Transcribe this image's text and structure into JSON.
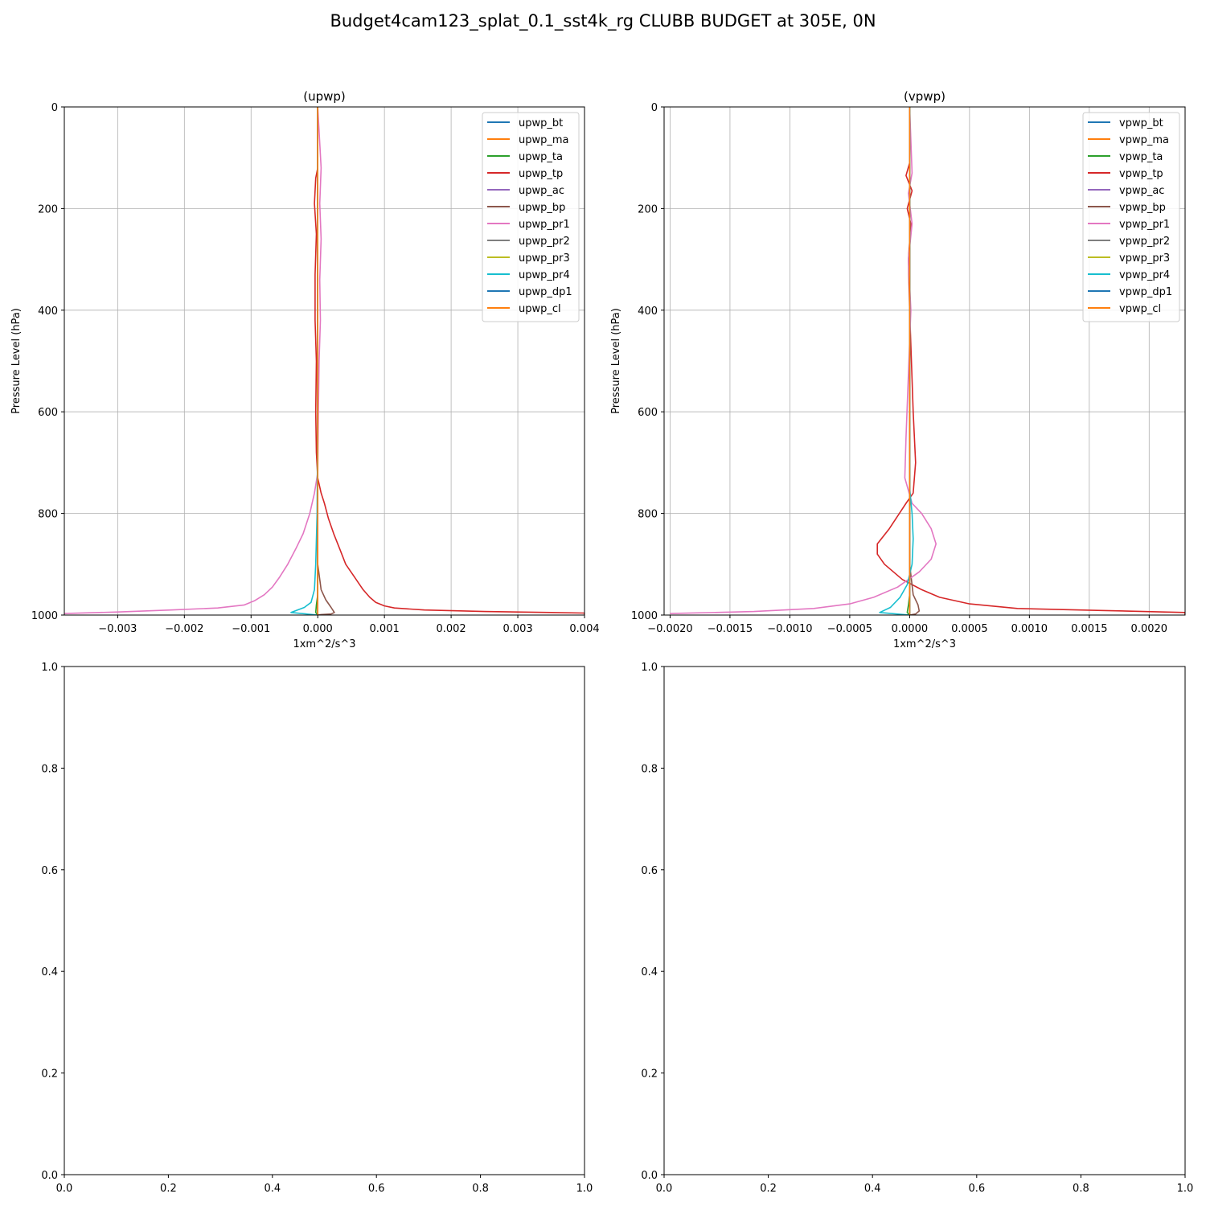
{
  "figure": {
    "title": "Budget4cam123_splat_0.1_sst4k_rg CLUBB BUDGET at 305E, 0N"
  },
  "chart_data": [
    {
      "type": "line",
      "title": "(upwp)",
      "xlabel": "1xm^2/s^3",
      "ylabel": "Pressure Level (hPa)",
      "xlim": [
        -0.0038,
        0.004
      ],
      "ylim": [
        1000,
        0
      ],
      "y_inverted": true,
      "grid": true,
      "legend": "top-right",
      "xticks": [
        -0.003,
        -0.002,
        -0.001,
        0.0,
        0.001,
        0.002,
        0.003,
        0.004
      ],
      "xtick_labels": [
        "−0.003",
        "−0.002",
        "−0.001",
        "0.000",
        "0.001",
        "0.002",
        "0.003",
        "0.004"
      ],
      "yticks": [
        0,
        200,
        400,
        600,
        800,
        1000
      ],
      "ytick_labels": [
        "0",
        "200",
        "400",
        "600",
        "800",
        "1000"
      ],
      "series": [
        {
          "name": "upwp_bt",
          "color": "#1f77b4",
          "x": [
            0,
            0,
            0,
            0
          ],
          "y": [
            0,
            500,
            900,
            1000
          ]
        },
        {
          "name": "upwp_ma",
          "color": "#ff7f0e",
          "x": [
            0,
            0,
            0,
            0
          ],
          "y": [
            0,
            500,
            900,
            1000
          ]
        },
        {
          "name": "upwp_ta",
          "color": "#2ca02c",
          "x": [
            0,
            0,
            0,
            0,
            -2e-05,
            -3e-05,
            0
          ],
          "y": [
            0,
            500,
            900,
            960,
            980,
            995,
            1000
          ]
        },
        {
          "name": "upwp_tp",
          "color": "#d62728",
          "x": [
            0,
            0,
            -3e-05,
            -5e-05,
            -2e-05,
            -4e-05,
            -4e-05,
            -2e-05,
            -3e-05,
            -2e-05,
            0,
            5e-05,
            0.0001,
            0.00016,
            0.00024,
            0.00033,
            0.00042,
            0.00055,
            0.00068,
            0.00078,
            0.00087,
            0.001,
            0.00115,
            0.0016,
            0.0025,
            0.0035,
            0.004,
            0.004
          ],
          "y": [
            0,
            120,
            140,
            190,
            250,
            330,
            420,
            500,
            600,
            680,
            730,
            760,
            780,
            810,
            840,
            870,
            900,
            925,
            950,
            965,
            975,
            982,
            986,
            990,
            993,
            995,
            996,
            1000
          ]
        },
        {
          "name": "upwp_ac",
          "color": "#9467bd",
          "x": [
            0,
            0,
            0,
            0
          ],
          "y": [
            0,
            500,
            900,
            1000
          ]
        },
        {
          "name": "upwp_bp",
          "color": "#8c564b",
          "x": [
            0,
            0,
            5e-05,
            0.00012,
            0.0002,
            0.00025,
            0.0002,
            5e-05,
            0
          ],
          "y": [
            0,
            900,
            950,
            970,
            985,
            995,
            998,
            999,
            1000
          ]
        },
        {
          "name": "upwp_pr1",
          "color": "#e377c2",
          "x": [
            0,
            5e-05,
            3e-05,
            5e-05,
            3e-05,
            4e-05,
            2e-05,
            1e-05,
            0,
            -5e-05,
            -0.00012,
            -0.00022,
            -0.00033,
            -0.00045,
            -0.00057,
            -0.00068,
            -0.0008,
            -0.00095,
            -0.0011,
            -0.0015,
            -0.0022,
            -0.003,
            -0.0038
          ],
          "y": [
            0,
            120,
            190,
            260,
            340,
            420,
            500,
            600,
            720,
            760,
            800,
            840,
            870,
            900,
            925,
            945,
            960,
            972,
            980,
            986,
            990,
            994,
            997
          ]
        },
        {
          "name": "upwp_pr2",
          "color": "#7f7f7f",
          "x": [
            0,
            0,
            0,
            0
          ],
          "y": [
            0,
            500,
            900,
            1000
          ]
        },
        {
          "name": "upwp_pr3",
          "color": "#bcbd22",
          "x": [
            0,
            0,
            0,
            0
          ],
          "y": [
            0,
            500,
            900,
            1000
          ]
        },
        {
          "name": "upwp_pr4",
          "color": "#17becf",
          "x": [
            0,
            0,
            -1e-05,
            -3e-05,
            -5e-05,
            -0.0001,
            -0.0002,
            -0.0004,
            0
          ],
          "y": [
            0,
            600,
            800,
            900,
            950,
            975,
            985,
            995,
            1000
          ]
        },
        {
          "name": "upwp_dp1",
          "color": "#1f77b4",
          "x": [
            0,
            0,
            0,
            0
          ],
          "y": [
            0,
            500,
            900,
            1000
          ]
        },
        {
          "name": "upwp_cl",
          "color": "#ff7f0e",
          "x": [
            0,
            0,
            0,
            0
          ],
          "y": [
            0,
            500,
            900,
            1000
          ]
        }
      ]
    },
    {
      "type": "line",
      "title": "(vpwp)",
      "xlabel": "1xm^2/s^3",
      "ylabel": "Pressure Level (hPa)",
      "xlim": [
        -0.00205,
        0.0023
      ],
      "ylim": [
        1000,
        0
      ],
      "y_inverted": true,
      "grid": true,
      "legend": "top-right",
      "xticks": [
        -0.002,
        -0.0015,
        -0.001,
        -0.0005,
        0.0,
        0.0005,
        0.001,
        0.0015,
        0.002
      ],
      "xtick_labels": [
        "−0.0020",
        "−0.0015",
        "−0.0010",
        "−0.0005",
        "0.0000",
        "0.0005",
        "0.0010",
        "0.0015",
        "0.0020"
      ],
      "yticks": [
        0,
        200,
        400,
        600,
        800,
        1000
      ],
      "ytick_labels": [
        "0",
        "200",
        "400",
        "600",
        "800",
        "1000"
      ],
      "series": [
        {
          "name": "vpwp_bt",
          "color": "#1f77b4",
          "x": [
            0,
            0,
            0,
            0
          ],
          "y": [
            0,
            500,
            900,
            1000
          ]
        },
        {
          "name": "vpwp_ma",
          "color": "#ff7f0e",
          "x": [
            0,
            0,
            0,
            0
          ],
          "y": [
            0,
            500,
            900,
            1000
          ]
        },
        {
          "name": "vpwp_ta",
          "color": "#2ca02c",
          "x": [
            0,
            0,
            0,
            0,
            -1e-05,
            -2e-05,
            0
          ],
          "y": [
            0,
            500,
            900,
            960,
            980,
            995,
            1000
          ]
        },
        {
          "name": "vpwp_tp",
          "color": "#d62728",
          "x": [
            0,
            0,
            -3e-05,
            2e-05,
            -2e-05,
            1e-05,
            -1e-05,
            0,
            3e-05,
            5e-05,
            3e-05,
            -3e-05,
            -0.00017,
            -0.00027,
            -0.00027,
            -0.00021,
            -6e-05,
            0.0001,
            0.00025,
            0.0005,
            0.0009,
            0.0016,
            0.0023,
            0.0023
          ],
          "y": [
            0,
            110,
            135,
            165,
            200,
            230,
            300,
            400,
            600,
            700,
            760,
            780,
            830,
            860,
            880,
            900,
            930,
            950,
            965,
            978,
            987,
            991,
            995,
            1000
          ]
        },
        {
          "name": "vpwp_ac",
          "color": "#9467bd",
          "x": [
            0,
            0,
            0,
            0
          ],
          "y": [
            0,
            500,
            900,
            1000
          ]
        },
        {
          "name": "vpwp_bp",
          "color": "#8c564b",
          "x": [
            0,
            0,
            3e-05,
            7e-05,
            8e-05,
            5e-05,
            0
          ],
          "y": [
            0,
            900,
            960,
            980,
            992,
            998,
            1000
          ]
        },
        {
          "name": "vpwp_pr1",
          "color": "#e377c2",
          "x": [
            0,
            2e-05,
            -1e-05,
            2e-05,
            -1e-05,
            1e-05,
            -3e-05,
            -4e-05,
            2e-05,
            0.0001,
            0.00018,
            0.00022,
            0.00018,
            8e-05,
            -0.0001,
            -0.0003,
            -0.0005,
            -0.0008,
            -0.0013,
            -0.002
          ],
          "y": [
            0,
            130,
            170,
            230,
            300,
            400,
            650,
            730,
            780,
            800,
            830,
            860,
            890,
            915,
            945,
            965,
            978,
            987,
            993,
            997
          ]
        },
        {
          "name": "vpwp_pr2",
          "color": "#7f7f7f",
          "x": [
            0,
            0,
            0,
            0
          ],
          "y": [
            0,
            500,
            900,
            1000
          ]
        },
        {
          "name": "vpwp_pr3",
          "color": "#bcbd22",
          "x": [
            0,
            0,
            0,
            0
          ],
          "y": [
            0,
            500,
            900,
            1000
          ]
        },
        {
          "name": "vpwp_pr4",
          "color": "#17becf",
          "x": [
            0,
            0,
            2e-05,
            3e-05,
            2e-05,
            -2e-05,
            -8e-05,
            -0.00016,
            -0.00025,
            0
          ],
          "y": [
            0,
            750,
            800,
            850,
            900,
            940,
            965,
            985,
            995,
            1000
          ]
        },
        {
          "name": "vpwp_dp1",
          "color": "#1f77b4",
          "x": [
            0,
            0,
            0,
            0
          ],
          "y": [
            0,
            500,
            900,
            1000
          ]
        },
        {
          "name": "vpwp_cl",
          "color": "#ff7f0e",
          "x": [
            0,
            0,
            0,
            0
          ],
          "y": [
            0,
            500,
            900,
            1000
          ]
        }
      ]
    },
    {
      "type": "line",
      "title": "",
      "xlim": [
        0,
        1
      ],
      "ylim": [
        0,
        1
      ],
      "grid": false,
      "xticks": [
        0.0,
        0.2,
        0.4,
        0.6,
        0.8,
        1.0
      ],
      "xtick_labels": [
        "0.0",
        "0.2",
        "0.4",
        "0.6",
        "0.8",
        "1.0"
      ],
      "yticks": [
        0.0,
        0.2,
        0.4,
        0.6,
        0.8,
        1.0
      ],
      "ytick_labels": [
        "0.0",
        "0.2",
        "0.4",
        "0.6",
        "0.8",
        "1.0"
      ],
      "series": []
    },
    {
      "type": "line",
      "title": "",
      "xlim": [
        0,
        1
      ],
      "ylim": [
        0,
        1
      ],
      "grid": false,
      "xticks": [
        0.0,
        0.2,
        0.4,
        0.6,
        0.8,
        1.0
      ],
      "xtick_labels": [
        "0.0",
        "0.2",
        "0.4",
        "0.6",
        "0.8",
        "1.0"
      ],
      "yticks": [
        0.0,
        0.2,
        0.4,
        0.6,
        0.8,
        1.0
      ],
      "ytick_labels": [
        "0.0",
        "0.2",
        "0.4",
        "0.6",
        "0.8",
        "1.0"
      ],
      "series": []
    }
  ]
}
